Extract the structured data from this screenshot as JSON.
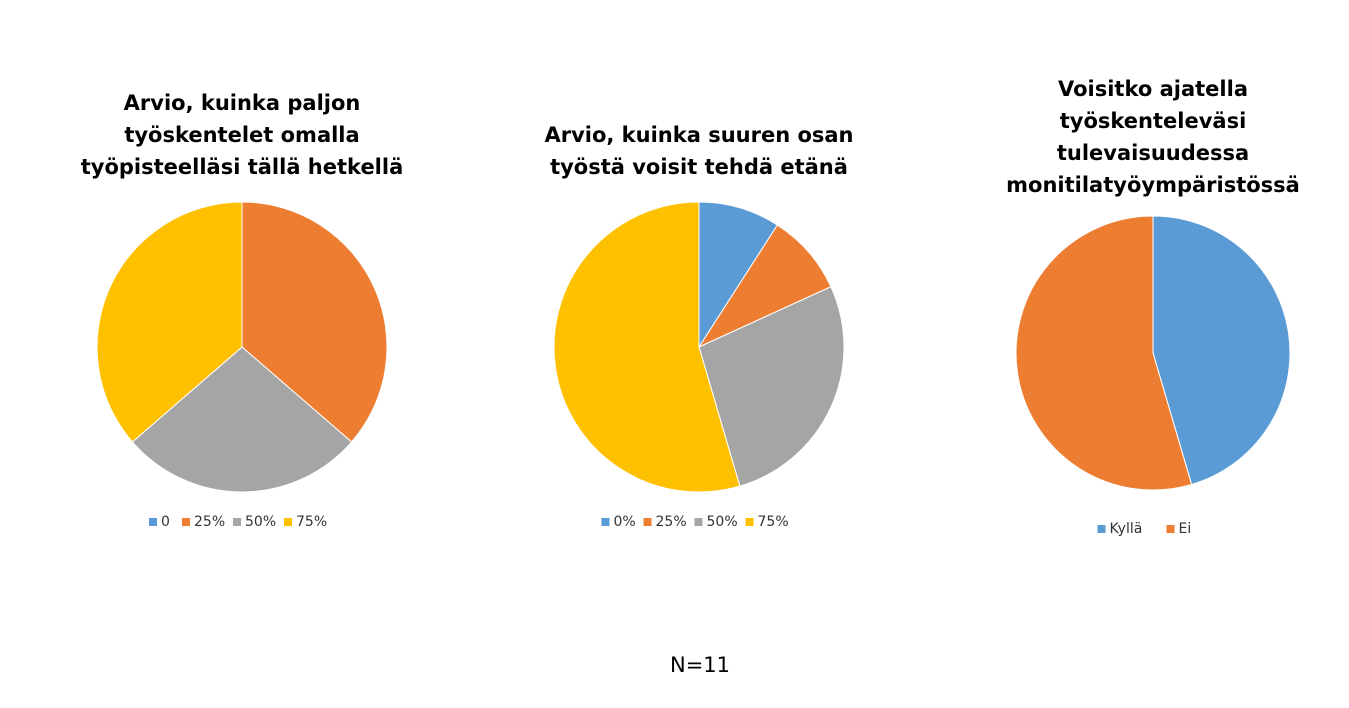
{
  "chart_data": [
    {
      "type": "pie",
      "title": [
        "Arvio, kuinka paljon",
        "työskentelet omalla",
        "työpisteelläsi tällä hetkellä"
      ],
      "categories": [
        "0",
        "25%",
        "50%",
        "75%"
      ],
      "values": [
        0,
        4,
        3,
        4
      ],
      "colors": [
        "#5b9bd5",
        "#ed7d31",
        "#a5a5a5",
        "#ffc000"
      ]
    },
    {
      "type": "pie",
      "title": [
        "Arvio, kuinka suuren osan",
        "työstä voisit tehdä etänä"
      ],
      "categories": [
        "0%",
        "25%",
        "50%",
        "75%"
      ],
      "values": [
        1,
        1,
        3,
        6
      ],
      "colors": [
        "#5b9bd5",
        "#ed7d31",
        "#a5a5a5",
        "#ffc000"
      ]
    },
    {
      "type": "pie",
      "title": [
        "Voisitko ajatella",
        "työskenteleväsi",
        "tulevaisuudessa",
        "monitilatyöympäristössä"
      ],
      "categories": [
        "Kyllä",
        "Ei"
      ],
      "values": [
        5,
        6
      ],
      "colors": [
        "#5b9bd5",
        "#ed7d31"
      ]
    }
  ],
  "note": "N=11"
}
